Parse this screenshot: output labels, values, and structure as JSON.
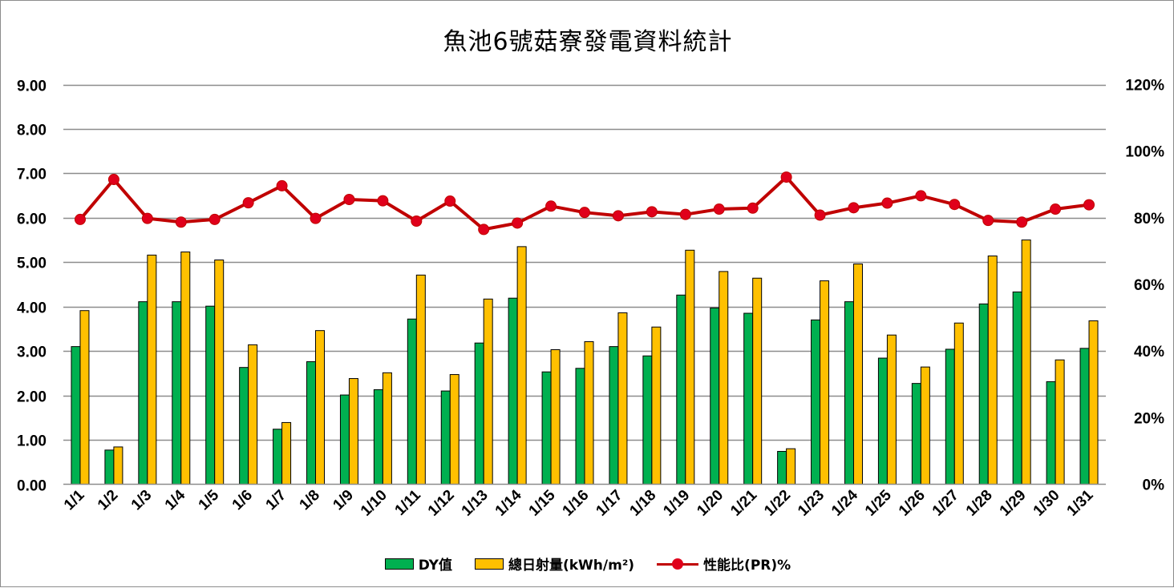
{
  "chart_data": {
    "type": "bar",
    "title": "魚池6號菇寮發電資料統計",
    "categories": [
      "1/1",
      "1/2",
      "1/3",
      "1/4",
      "1/5",
      "1/6",
      "1/7",
      "1/8",
      "1/9",
      "1/10",
      "1/11",
      "1/12",
      "1/13",
      "1/14",
      "1/15",
      "1/16",
      "1/17",
      "1/18",
      "1/19",
      "1/20",
      "1/21",
      "1/22",
      "1/23",
      "1/24",
      "1/25",
      "1/26",
      "1/27",
      "1/28",
      "1/29",
      "1/30",
      "1/31"
    ],
    "series": [
      {
        "name": "DY值",
        "type": "bar",
        "axis": "left",
        "color": "#00b050",
        "values": [
          3.1,
          0.77,
          4.11,
          4.11,
          4.01,
          2.63,
          1.24,
          2.76,
          2.01,
          2.13,
          3.72,
          2.1,
          3.18,
          4.19,
          2.53,
          2.61,
          3.1,
          2.89,
          4.26,
          3.97,
          3.85,
          0.74,
          3.7,
          4.11,
          2.84,
          2.27,
          3.04,
          4.06,
          4.33,
          2.31,
          3.06
        ]
      },
      {
        "name": "總日射量(kWh/m²)",
        "type": "bar",
        "axis": "left",
        "color": "#ffc000",
        "values": [
          3.91,
          0.84,
          5.16,
          5.23,
          5.05,
          3.14,
          1.39,
          3.46,
          2.38,
          2.51,
          4.71,
          2.47,
          4.17,
          5.35,
          3.03,
          3.21,
          3.86,
          3.54,
          5.27,
          4.79,
          4.64,
          0.8,
          4.58,
          4.96,
          3.36,
          2.64,
          3.63,
          5.14,
          5.5,
          2.8,
          3.68
        ]
      },
      {
        "name": "性能比(PR)%",
        "type": "line",
        "axis": "right",
        "color": "#c00000",
        "values": [
          79.5,
          91.5,
          79.8,
          78.7,
          79.5,
          84.5,
          89.6,
          79.8,
          85.5,
          85.1,
          79.0,
          85.0,
          76.5,
          78.4,
          83.5,
          81.6,
          80.6,
          81.8,
          81.0,
          82.6,
          82.9,
          92.2,
          80.8,
          83.0,
          84.4,
          86.6,
          84.0,
          79.2,
          78.7,
          82.6,
          83.9
        ]
      }
    ],
    "y_left": {
      "min": 0,
      "max": 9,
      "ticks": [
        "0.00",
        "1.00",
        "2.00",
        "3.00",
        "4.00",
        "5.00",
        "6.00",
        "7.00",
        "8.00",
        "9.00"
      ]
    },
    "y_right": {
      "min": 0,
      "max": 120,
      "ticks": [
        "0%",
        "20%",
        "40%",
        "60%",
        "80%",
        "100%",
        "120%"
      ]
    },
    "grid": "horizontal",
    "legend_position": "bottom"
  }
}
